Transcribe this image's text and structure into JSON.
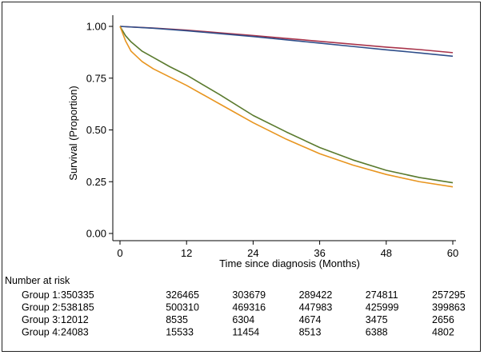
{
  "chart_data": {
    "type": "line",
    "xlabel": "Time since diagnosis (Months)",
    "ylabel": "Survival (Proportion)",
    "xlim": [
      0,
      60
    ],
    "ylim": [
      0,
      1
    ],
    "x_ticks": [
      "0",
      "12",
      "24",
      "36",
      "48",
      "60"
    ],
    "y_ticks": [
      "0.00",
      "0.25",
      "0.50",
      "0.75",
      "1.00"
    ],
    "grid": false,
    "legend": "none",
    "series": [
      {
        "color": "#a8334a",
        "x": [
          0,
          6,
          12,
          18,
          24,
          30,
          36,
          42,
          48,
          54,
          60
        ],
        "y": [
          1.0,
          0.992,
          0.982,
          0.969,
          0.956,
          0.942,
          0.928,
          0.914,
          0.9,
          0.888,
          0.873
        ]
      },
      {
        "color": "#2e4e8a",
        "x": [
          0,
          6,
          12,
          18,
          24,
          30,
          36,
          42,
          48,
          54,
          60
        ],
        "y": [
          1.0,
          0.991,
          0.979,
          0.965,
          0.951,
          0.935,
          0.919,
          0.903,
          0.887,
          0.872,
          0.856
        ]
      },
      {
        "color": "#5a7a2e",
        "x": [
          0,
          1,
          2,
          4,
          6,
          9,
          12,
          18,
          24,
          30,
          36,
          42,
          48,
          54,
          60
        ],
        "y": [
          1.0,
          0.955,
          0.925,
          0.88,
          0.85,
          0.805,
          0.765,
          0.67,
          0.57,
          0.49,
          0.415,
          0.355,
          0.305,
          0.27,
          0.245
        ]
      },
      {
        "color": "#e8951f",
        "x": [
          0,
          1,
          2,
          4,
          6,
          9,
          12,
          18,
          24,
          30,
          36,
          42,
          48,
          54,
          60
        ],
        "y": [
          1.0,
          0.93,
          0.88,
          0.83,
          0.795,
          0.755,
          0.715,
          0.625,
          0.535,
          0.455,
          0.385,
          0.33,
          0.285,
          0.25,
          0.225
        ]
      }
    ],
    "risk_table": {
      "title": "Number at risk",
      "rows": [
        {
          "label": "Group 1:",
          "values": [
            "350335",
            "326465",
            "303679",
            "289422",
            "274811",
            "257295"
          ]
        },
        {
          "label": "Group 2:",
          "values": [
            "538185",
            "500310",
            "469316",
            "447983",
            "425999",
            "399863"
          ]
        },
        {
          "label": "Group 3:",
          "values": [
            "12012",
            "8535",
            "6304",
            "4674",
            "3475",
            "2656"
          ]
        },
        {
          "label": "Group 4:",
          "values": [
            "24083",
            "15533",
            "11454",
            "8513",
            "6388",
            "4802"
          ]
        }
      ]
    }
  }
}
